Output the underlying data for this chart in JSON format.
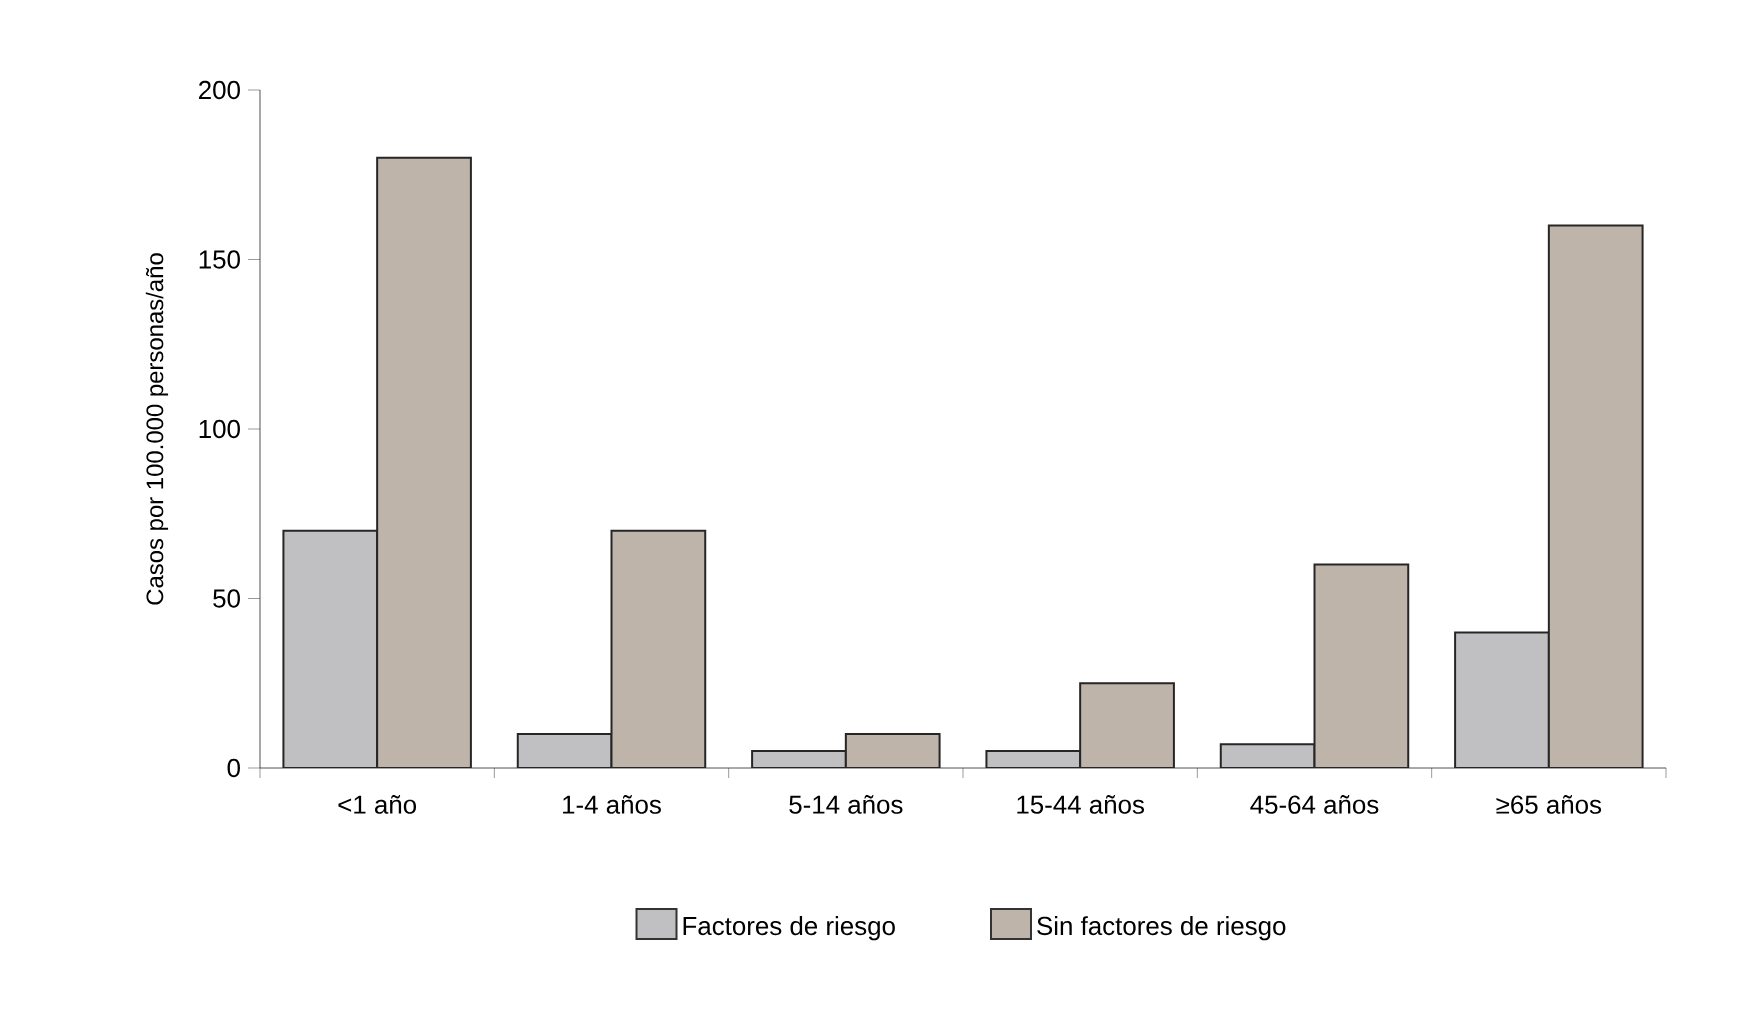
{
  "chart_data": {
    "type": "bar",
    "ylabel": "Casos por 100.000 personas/año",
    "categories": [
      "<1 año",
      "1-4 años",
      "5-14 años",
      "15-44 años",
      "45-64 años",
      "≥65 años"
    ],
    "series": [
      {
        "name": "Factores de riesgo",
        "color": "#c0c0c2",
        "values": [
          70,
          10,
          5,
          5,
          7,
          40
        ]
      },
      {
        "name": "Sin factores de riesgo",
        "color": "#bfb4aa",
        "values": [
          180,
          70,
          10,
          25,
          60,
          160
        ]
      }
    ],
    "ylim": [
      0,
      200
    ],
    "yticks": [
      0,
      50,
      100,
      150,
      200
    ],
    "grid": false,
    "legend": "bottom"
  }
}
